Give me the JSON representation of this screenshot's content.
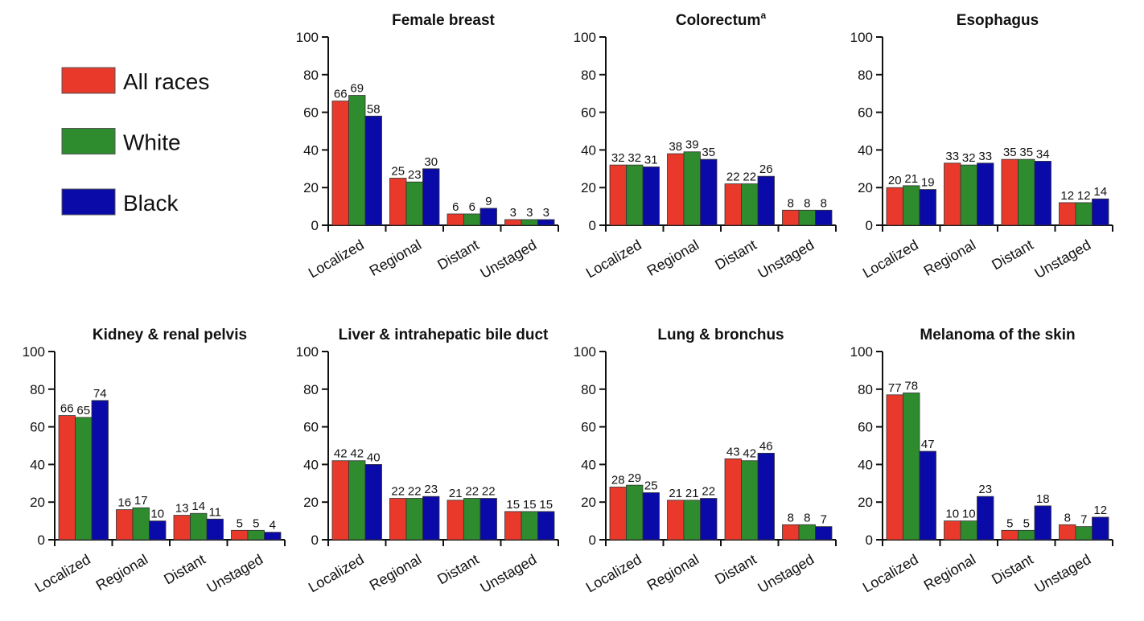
{
  "legend": [
    {
      "name": "All races",
      "color": "#e8392b"
    },
    {
      "name": "White",
      "color": "#2e8b2e"
    },
    {
      "name": "Black",
      "color": "#0a0aa8"
    }
  ],
  "chart_data": [
    {
      "type": "bar",
      "title": "Female breast",
      "categories": [
        "Localized",
        "Regional",
        "Distant",
        "Unstaged"
      ],
      "series": [
        {
          "values": [
            66,
            25,
            6,
            3
          ]
        },
        {
          "values": [
            69,
            23,
            6,
            3
          ]
        },
        {
          "values": [
            58,
            30,
            9,
            3
          ]
        }
      ],
      "ylim": [
        0,
        100
      ],
      "yticks": [
        0,
        20,
        40,
        60,
        80,
        100
      ]
    },
    {
      "type": "bar",
      "title": "Colorectum",
      "title_superscript": "a",
      "categories": [
        "Localized",
        "Regional",
        "Distant",
        "Unstaged"
      ],
      "series": [
        {
          "values": [
            32,
            38,
            22,
            8
          ]
        },
        {
          "values": [
            32,
            39,
            22,
            8
          ]
        },
        {
          "values": [
            31,
            35,
            26,
            8
          ]
        }
      ],
      "ylim": [
        0,
        100
      ],
      "yticks": [
        0,
        20,
        40,
        60,
        80,
        100
      ]
    },
    {
      "type": "bar",
      "title": "Esophagus",
      "categories": [
        "Localized",
        "Regional",
        "Distant",
        "Unstaged"
      ],
      "series": [
        {
          "values": [
            20,
            33,
            35,
            12
          ]
        },
        {
          "values": [
            21,
            32,
            35,
            12
          ]
        },
        {
          "values": [
            19,
            33,
            34,
            14
          ]
        }
      ],
      "ylim": [
        0,
        100
      ],
      "yticks": [
        0,
        20,
        40,
        60,
        80,
        100
      ]
    },
    {
      "type": "bar",
      "title": "Kidney & renal pelvis",
      "categories": [
        "Localized",
        "Regional",
        "Distant",
        "Unstaged"
      ],
      "series": [
        {
          "values": [
            66,
            16,
            13,
            5
          ]
        },
        {
          "values": [
            65,
            17,
            14,
            5
          ]
        },
        {
          "values": [
            74,
            10,
            11,
            4
          ]
        }
      ],
      "ylim": [
        0,
        100
      ],
      "yticks": [
        0,
        20,
        40,
        60,
        80,
        100
      ]
    },
    {
      "type": "bar",
      "title": "Liver & intrahepatic bile duct",
      "categories": [
        "Localized",
        "Regional",
        "Distant",
        "Unstaged"
      ],
      "series": [
        {
          "values": [
            42,
            22,
            21,
            15
          ]
        },
        {
          "values": [
            42,
            22,
            22,
            15
          ]
        },
        {
          "values": [
            40,
            23,
            22,
            15
          ]
        }
      ],
      "ylim": [
        0,
        100
      ],
      "yticks": [
        0,
        20,
        40,
        60,
        80,
        100
      ]
    },
    {
      "type": "bar",
      "title": "Lung & bronchus",
      "categories": [
        "Localized",
        "Regional",
        "Distant",
        "Unstaged"
      ],
      "series": [
        {
          "values": [
            28,
            21,
            43,
            8
          ]
        },
        {
          "values": [
            29,
            21,
            42,
            8
          ]
        },
        {
          "values": [
            25,
            22,
            46,
            7
          ]
        }
      ],
      "ylim": [
        0,
        100
      ],
      "yticks": [
        0,
        20,
        40,
        60,
        80,
        100
      ]
    },
    {
      "type": "bar",
      "title": "Melanoma of the skin",
      "categories": [
        "Localized",
        "Regional",
        "Distant",
        "Unstaged"
      ],
      "series": [
        {
          "values": [
            77,
            10,
            5,
            8
          ]
        },
        {
          "values": [
            78,
            10,
            5,
            7
          ]
        },
        {
          "values": [
            47,
            23,
            18,
            12
          ]
        }
      ],
      "ylim": [
        0,
        100
      ],
      "yticks": [
        0,
        20,
        40,
        60,
        80,
        100
      ]
    }
  ]
}
